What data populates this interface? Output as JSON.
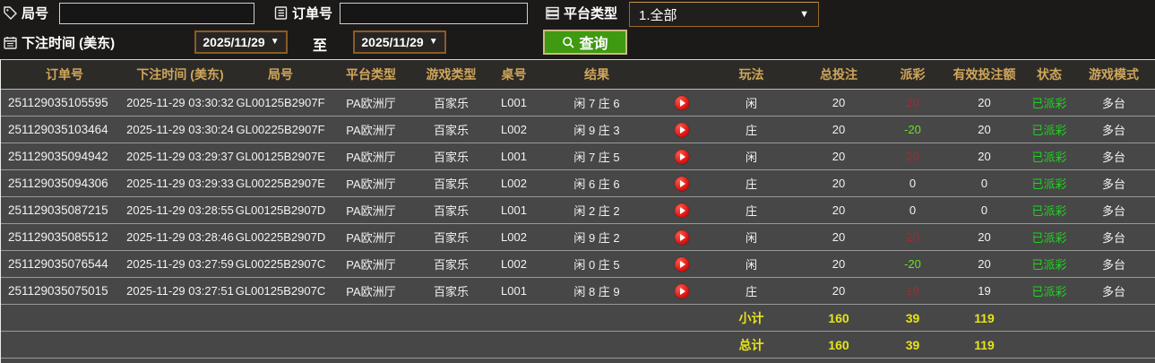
{
  "filters": {
    "game_no_label": "局号",
    "order_no_label": "订单号",
    "platform_type_label": "平台类型",
    "platform_type_value": "1.全部",
    "bet_time_label": "下注时间 (美东)",
    "date_from": "2025/11/29",
    "date_to": "2025/11/29",
    "to_label": "至",
    "query_label": "查询",
    "dropdown_arrow": "▼",
    "game_no_value": "",
    "order_no_value": ""
  },
  "colors": {
    "header_gold": "#cfa65a",
    "totals_yellow": "#e6e41a",
    "status_green": "#1fd31f",
    "payout_win_red": "#aa2634",
    "payout_lose_green": "#63e51c",
    "query_button_green": "#3f9a12",
    "date_border_brown": "#8a5c26",
    "row_gray": "#474747",
    "header_bg": "#2d2b28"
  },
  "table": {
    "headers": [
      "订单号",
      "下注时间 (美东)",
      "局号",
      "平台类型",
      "游戏类型",
      "桌号",
      "结果",
      "玩法",
      "总投注",
      "派彩",
      "有效投注额",
      "状态",
      "游戏模式"
    ],
    "rows": [
      {
        "order_no": "251129035105595",
        "bet_time": "2025-11-29 03:30:32",
        "game_no": "GL00125B2907F",
        "platform": "PA欧洲厅",
        "game_type": "百家乐",
        "table_no": "L001",
        "result": "闲 7 庄 6",
        "play": "闲",
        "total_bet": "20",
        "payout": "20",
        "payout_class": "pos",
        "valid_bet": "20",
        "status": "已派彩",
        "mode": "多台"
      },
      {
        "order_no": "251129035103464",
        "bet_time": "2025-11-29 03:30:24",
        "game_no": "GL00225B2907F",
        "platform": "PA欧洲厅",
        "game_type": "百家乐",
        "table_no": "L002",
        "result": "闲 9 庄 3",
        "play": "庄",
        "total_bet": "20",
        "payout": "-20",
        "payout_class": "neg",
        "valid_bet": "20",
        "status": "已派彩",
        "mode": "多台"
      },
      {
        "order_no": "251129035094942",
        "bet_time": "2025-11-29 03:29:37",
        "game_no": "GL00125B2907E",
        "platform": "PA欧洲厅",
        "game_type": "百家乐",
        "table_no": "L001",
        "result": "闲 7 庄 5",
        "play": "闲",
        "total_bet": "20",
        "payout": "20",
        "payout_class": "pos",
        "valid_bet": "20",
        "status": "已派彩",
        "mode": "多台"
      },
      {
        "order_no": "251129035094306",
        "bet_time": "2025-11-29 03:29:33",
        "game_no": "GL00225B2907E",
        "platform": "PA欧洲厅",
        "game_type": "百家乐",
        "table_no": "L002",
        "result": "闲 6 庄 6",
        "play": "庄",
        "total_bet": "20",
        "payout": "0",
        "payout_class": "zero",
        "valid_bet": "0",
        "status": "已派彩",
        "mode": "多台"
      },
      {
        "order_no": "251129035087215",
        "bet_time": "2025-11-29 03:28:55",
        "game_no": "GL00125B2907D",
        "platform": "PA欧洲厅",
        "game_type": "百家乐",
        "table_no": "L001",
        "result": "闲 2 庄 2",
        "play": "庄",
        "total_bet": "20",
        "payout": "0",
        "payout_class": "zero",
        "valid_bet": "0",
        "status": "已派彩",
        "mode": "多台"
      },
      {
        "order_no": "251129035085512",
        "bet_time": "2025-11-29 03:28:46",
        "game_no": "GL00225B2907D",
        "platform": "PA欧洲厅",
        "game_type": "百家乐",
        "table_no": "L002",
        "result": "闲 9 庄 2",
        "play": "闲",
        "total_bet": "20",
        "payout": "20",
        "payout_class": "pos",
        "valid_bet": "20",
        "status": "已派彩",
        "mode": "多台"
      },
      {
        "order_no": "251129035076544",
        "bet_time": "2025-11-29 03:27:59",
        "game_no": "GL00225B2907C",
        "platform": "PA欧洲厅",
        "game_type": "百家乐",
        "table_no": "L002",
        "result": "闲 0 庄 5",
        "play": "闲",
        "total_bet": "20",
        "payout": "-20",
        "payout_class": "neg",
        "valid_bet": "20",
        "status": "已派彩",
        "mode": "多台"
      },
      {
        "order_no": "251129035075015",
        "bet_time": "2025-11-29 03:27:51",
        "game_no": "GL00125B2907C",
        "platform": "PA欧洲厅",
        "game_type": "百家乐",
        "table_no": "L001",
        "result": "闲 8 庄 9",
        "play": "庄",
        "total_bet": "20",
        "payout": "19",
        "payout_class": "pos",
        "valid_bet": "19",
        "status": "已派彩",
        "mode": "多台"
      }
    ],
    "subtotal": {
      "label": "小计",
      "total_bet": "160",
      "payout": "39",
      "valid_bet": "119"
    },
    "total": {
      "label": "总计",
      "total_bet": "160",
      "payout": "39",
      "valid_bet": "119"
    }
  }
}
